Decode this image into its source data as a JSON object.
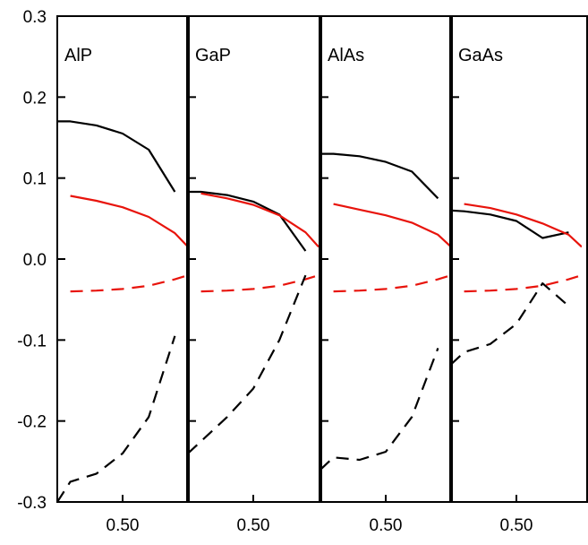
{
  "chart_data": {
    "type": "line",
    "title": "",
    "xlabel": "",
    "ylabel": "",
    "ylim": [
      -0.3,
      0.3
    ],
    "yticks": [
      0.3,
      0.2,
      0.1,
      0.0,
      -0.1,
      -0.2,
      -0.3
    ],
    "ytick_labels": [
      "0.3",
      "0.2",
      "0.1",
      "0.0",
      "-0.1",
      "-0.2",
      "-0.3"
    ],
    "xlim": [
      0.25,
      0.75
    ],
    "xticks": [
      0.5
    ],
    "xtick_label": "0.50",
    "grid": false,
    "colors": {
      "black": "#000000",
      "red": "#e8140c"
    },
    "panels": [
      {
        "label": "AlP",
        "series": [
          {
            "color": "#000000",
            "style": "solid",
            "x": [
              0.25,
              0.3,
              0.4,
              0.5,
              0.6,
              0.7
            ],
            "y": [
              0.17,
              0.17,
              0.165,
              0.155,
              0.135,
              0.083
            ]
          },
          {
            "color": "#e8140c",
            "style": "solid",
            "x": [
              0.3,
              0.4,
              0.5,
              0.6,
              0.7,
              0.75
            ],
            "y": [
              0.078,
              0.072,
              0.064,
              0.052,
              0.032,
              0.015
            ]
          },
          {
            "color": "#e8140c",
            "style": "dashed",
            "x": [
              0.3,
              0.4,
              0.5,
              0.6,
              0.7,
              0.75
            ],
            "y": [
              -0.04,
              -0.039,
              -0.037,
              -0.033,
              -0.025,
              -0.02
            ]
          },
          {
            "color": "#000000",
            "style": "dashed",
            "x": [
              0.25,
              0.3,
              0.4,
              0.5,
              0.6,
              0.7
            ],
            "y": [
              -0.3,
              -0.275,
              -0.265,
              -0.24,
              -0.195,
              -0.095
            ]
          }
        ]
      },
      {
        "label": "GaP",
        "series": [
          {
            "color": "#000000",
            "style": "solid",
            "x": [
              0.25,
              0.3,
              0.4,
              0.5,
              0.6,
              0.7
            ],
            "y": [
              0.083,
              0.083,
              0.079,
              0.071,
              0.055,
              0.01
            ]
          },
          {
            "color": "#e8140c",
            "style": "solid",
            "x": [
              0.3,
              0.4,
              0.5,
              0.6,
              0.7,
              0.75
            ],
            "y": [
              0.081,
              0.075,
              0.067,
              0.054,
              0.033,
              0.015
            ]
          },
          {
            "color": "#e8140c",
            "style": "dashed",
            "x": [
              0.3,
              0.4,
              0.5,
              0.6,
              0.7,
              0.75
            ],
            "y": [
              -0.04,
              -0.039,
              -0.037,
              -0.033,
              -0.025,
              -0.02
            ]
          },
          {
            "color": "#000000",
            "style": "dashed",
            "x": [
              0.25,
              0.3,
              0.4,
              0.5,
              0.6,
              0.7
            ],
            "y": [
              -0.24,
              -0.225,
              -0.195,
              -0.16,
              -0.1,
              -0.02
            ]
          }
        ]
      },
      {
        "label": "AlAs",
        "series": [
          {
            "color": "#000000",
            "style": "solid",
            "x": [
              0.25,
              0.3,
              0.4,
              0.5,
              0.6,
              0.7
            ],
            "y": [
              0.13,
              0.13,
              0.127,
              0.12,
              0.108,
              0.075
            ]
          },
          {
            "color": "#e8140c",
            "style": "solid",
            "x": [
              0.3,
              0.4,
              0.5,
              0.6,
              0.7,
              0.75
            ],
            "y": [
              0.068,
              0.061,
              0.054,
              0.045,
              0.03,
              0.015
            ]
          },
          {
            "color": "#e8140c",
            "style": "dashed",
            "x": [
              0.3,
              0.4,
              0.5,
              0.6,
              0.7,
              0.75
            ],
            "y": [
              -0.04,
              -0.039,
              -0.037,
              -0.033,
              -0.025,
              -0.02
            ]
          },
          {
            "color": "#000000",
            "style": "dashed",
            "x": [
              0.25,
              0.3,
              0.4,
              0.5,
              0.6,
              0.7
            ],
            "y": [
              -0.26,
              -0.245,
              -0.248,
              -0.238,
              -0.195,
              -0.11
            ]
          }
        ]
      },
      {
        "label": "GaAs",
        "series": [
          {
            "color": "#000000",
            "style": "solid",
            "x": [
              0.25,
              0.3,
              0.4,
              0.5,
              0.6,
              0.7
            ],
            "y": [
              0.06,
              0.059,
              0.055,
              0.047,
              0.026,
              0.033
            ]
          },
          {
            "color": "#e8140c",
            "style": "solid",
            "x": [
              0.3,
              0.4,
              0.5,
              0.6,
              0.7,
              0.75
            ],
            "y": [
              0.068,
              0.063,
              0.055,
              0.044,
              0.03,
              0.015
            ]
          },
          {
            "color": "#e8140c",
            "style": "dashed",
            "x": [
              0.3,
              0.4,
              0.5,
              0.6,
              0.7,
              0.75
            ],
            "y": [
              -0.04,
              -0.039,
              -0.037,
              -0.033,
              -0.025,
              -0.02
            ]
          },
          {
            "color": "#000000",
            "style": "dashed",
            "x": [
              0.25,
              0.3,
              0.4,
              0.5,
              0.6,
              0.7
            ],
            "y": [
              -0.13,
              -0.115,
              -0.105,
              -0.08,
              -0.03,
              -0.058
            ]
          }
        ]
      }
    ]
  }
}
